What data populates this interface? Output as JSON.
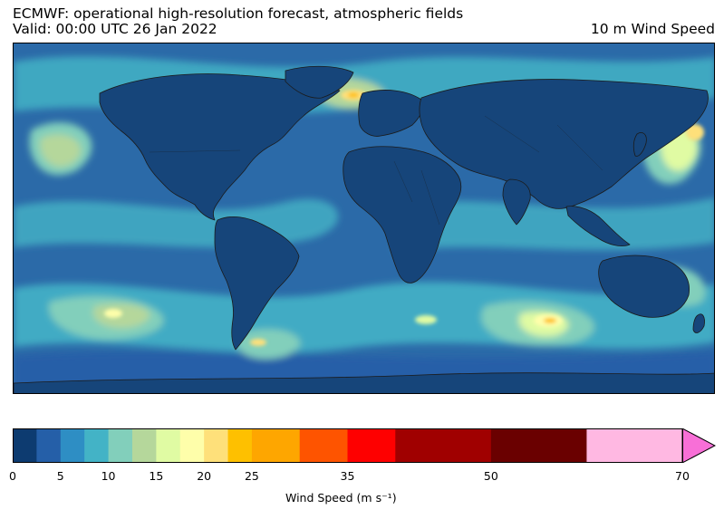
{
  "header": {
    "title_line1": "ECMWF: operational high-resolution forecast, atmospheric fields",
    "title_line2": "Valid: 00:00 UTC 26 Jan 2022",
    "right_title": "10 m Wind Speed"
  },
  "map": {
    "kind": "global wind speed field map with coastlines",
    "ocean_base_color": "#2b6aa8",
    "land_color": "#16457a",
    "coastline_color": "#1b1b1b"
  },
  "colorbar": {
    "label": "Wind Speed (m s⁻¹)",
    "extend": "max",
    "bins": [
      {
        "from": 0,
        "to": 2.5,
        "color": "#0d3b70"
      },
      {
        "from": 2.5,
        "to": 5,
        "color": "#255fa8"
      },
      {
        "from": 5,
        "to": 7.5,
        "color": "#2e8ec4"
      },
      {
        "from": 7.5,
        "to": 10,
        "color": "#43b3c6"
      },
      {
        "from": 10,
        "to": 12.5,
        "color": "#82cfbb"
      },
      {
        "from": 12.5,
        "to": 15,
        "color": "#b5d79b"
      },
      {
        "from": 15,
        "to": 17.5,
        "color": "#e0fba3"
      },
      {
        "from": 17.5,
        "to": 20,
        "color": "#fefeaa"
      },
      {
        "from": 20,
        "to": 22.5,
        "color": "#fee07a"
      },
      {
        "from": 22.5,
        "to": 25,
        "color": "#fec000"
      },
      {
        "from": 25,
        "to": 30,
        "color": "#fea600"
      },
      {
        "from": 30,
        "to": 35,
        "color": "#fe5400"
      },
      {
        "from": 35,
        "to": 40,
        "color": "#fe0000"
      },
      {
        "from": 40,
        "to": 50,
        "color": "#a00000"
      },
      {
        "from": 50,
        "to": 60,
        "color": "#6a0000"
      },
      {
        "from": 60,
        "to": 70,
        "color": "#ffb8e2"
      }
    ],
    "over_color": "#f86fd7",
    "vmin": 0,
    "vmax": 70,
    "tick_values": [
      0,
      5,
      10,
      15,
      20,
      25,
      35,
      50,
      70
    ],
    "tick_labels": [
      "0",
      "5",
      "10",
      "15",
      "20",
      "25",
      "35",
      "50",
      "70"
    ],
    "minor_ticks": [
      2.5,
      7.5,
      12.5,
      17.5,
      22.5,
      30,
      40,
      60
    ]
  }
}
